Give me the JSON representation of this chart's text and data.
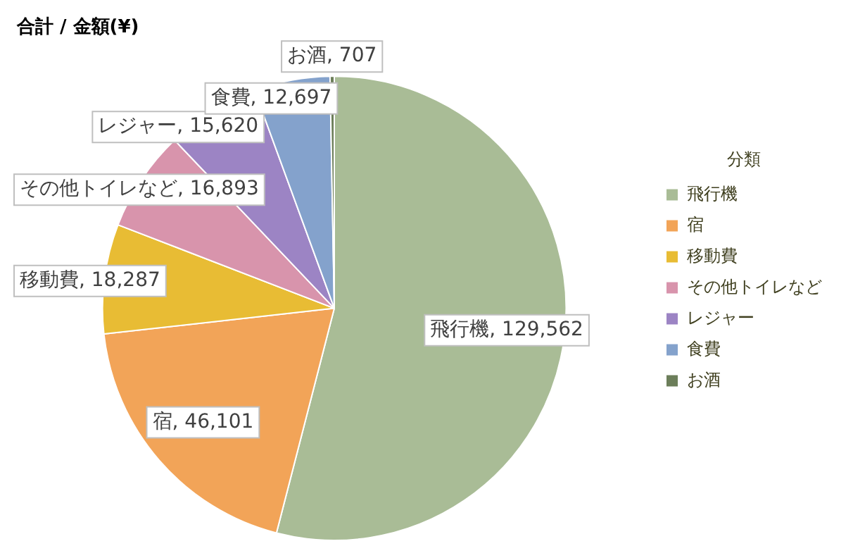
{
  "chart_data": {
    "type": "pie",
    "title": "合計 / 金額(¥)",
    "legend_title": "分類",
    "legend": "right",
    "value_labels": [
      "飛行機, 129,562",
      "宿, 46,101",
      "移動費, 18,287",
      "その他トイレなど, 16,893",
      "レジャー, 15,620",
      "食費, 12,697",
      "お酒, 707"
    ],
    "categories": [
      "飛行機",
      "宿",
      "移動費",
      "その他トイレなど",
      "レジャー",
      "食費",
      "お酒"
    ],
    "values": [
      129562,
      46101,
      18287,
      16893,
      15620,
      12697,
      707
    ],
    "colors": [
      "#a9bc96",
      "#f2a458",
      "#e8bc34",
      "#d894ac",
      "#9c84c4",
      "#84a2cc",
      "#6c7e5a"
    ]
  }
}
